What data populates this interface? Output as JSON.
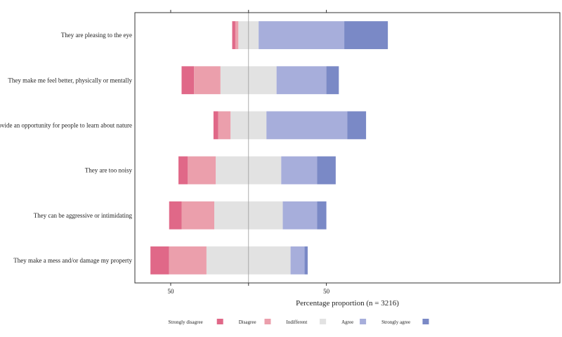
{
  "chart_data": {
    "type": "bar",
    "orientation": "horizontal-diverging-stacked",
    "xlabel": "Percentage proportion (n = 3216)",
    "ylabel": "",
    "xlim": [
      -73,
      200
    ],
    "x_ticks": [
      {
        "value": -50,
        "label": "50"
      },
      {
        "value": 0,
        "label": ""
      },
      {
        "value": 50,
        "label": "50"
      }
    ],
    "grid": false,
    "legend_position": "bottom",
    "categories": [
      "They are pleasing to the eye",
      "They make me feel better, physically or mentally",
      "They provide an opportunity for people to learn about nature",
      "They are too noisy",
      "They can be aggressive or intimidating",
      "They make a mess and/or damage my property"
    ],
    "series": [
      {
        "name": "Strongly disagree",
        "color": "#e06888",
        "values": [
          2,
          8,
          3,
          6,
          8,
          12
        ]
      },
      {
        "name": "Disagree",
        "color": "#eb9fac",
        "values": [
          2,
          17,
          8,
          18,
          21,
          24
        ]
      },
      {
        "name": "Indifferent",
        "color": "#e2e2e2",
        "values": [
          13,
          36,
          23,
          42,
          44,
          54
        ]
      },
      {
        "name": "Agree",
        "color": "#a7aedb",
        "values": [
          55,
          32,
          52,
          23,
          22,
          9
        ]
      },
      {
        "name": "Strongly agree",
        "color": "#7a89c6",
        "values": [
          28,
          8,
          12,
          12,
          6,
          2
        ]
      }
    ]
  }
}
